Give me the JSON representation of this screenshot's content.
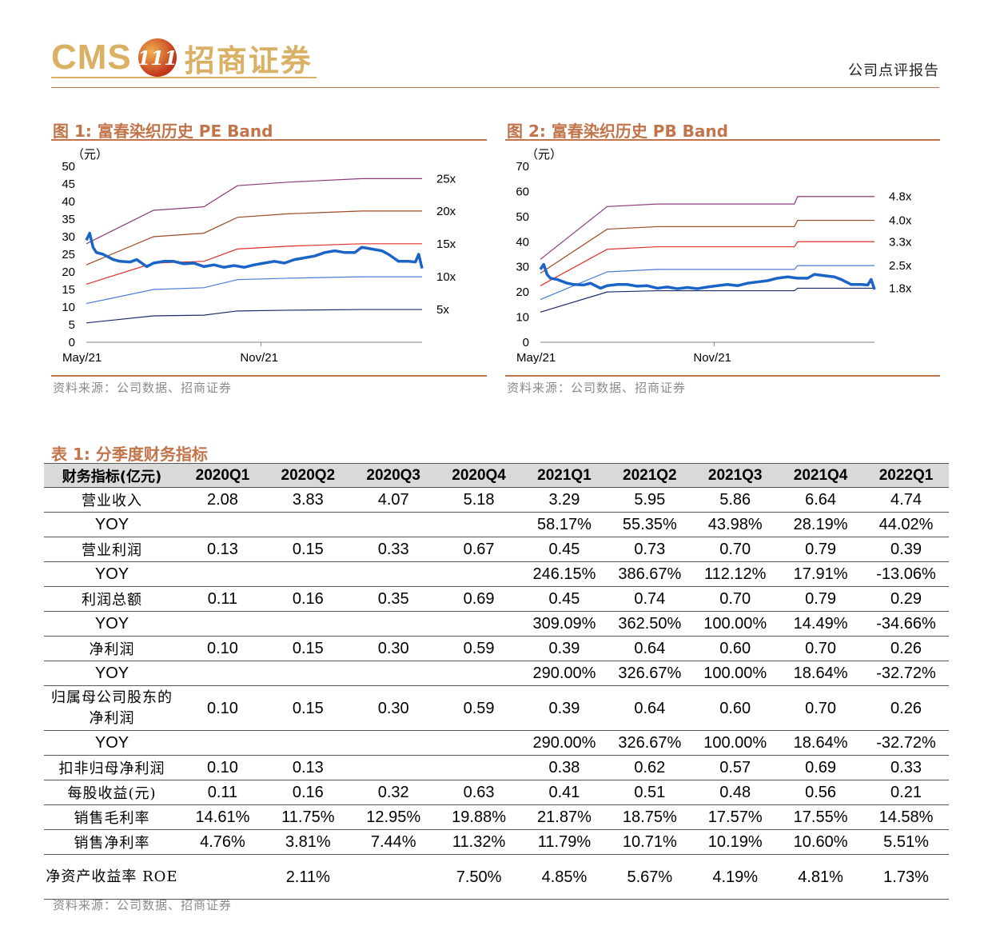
{
  "header": {
    "logo_en": "CMS",
    "logo_badge": "111",
    "logo_cn": "招商证券",
    "report_type": "公司点评报告"
  },
  "figures": [
    {
      "title": "图 1:  富春染织历史 PE Band",
      "source": "资料来源：公司数据、招商证券"
    },
    {
      "title": "图 2:  富春染织历史 PB Band",
      "source": "资料来源：公司数据、招商证券"
    }
  ],
  "chart_data": [
    {
      "type": "line",
      "title": "富春染织历史 PE Band",
      "unit_label": "（元）",
      "x_tick_labels": [
        "May/21",
        "Nov/21"
      ],
      "ylim": [
        0,
        50
      ],
      "y_ticks": [
        0,
        5,
        10,
        15,
        20,
        25,
        30,
        35,
        40,
        45,
        50
      ],
      "grid": false,
      "x": [
        0,
        0.2,
        0.35,
        0.45,
        0.6,
        0.82,
        1.0
      ],
      "series": [
        {
          "name": "25x",
          "color": "#8b3a7a",
          "values": [
            28,
            37.5,
            38.5,
            44.5,
            45.5,
            46.5,
            46.5
          ]
        },
        {
          "name": "20x",
          "color": "#9e4a24",
          "values": [
            22,
            30,
            31,
            35.5,
            36.5,
            37.3,
            37.3
          ]
        },
        {
          "name": "15x",
          "color": "#e0302a",
          "values": [
            16.5,
            22.5,
            23,
            26.5,
            27.3,
            28,
            28
          ]
        },
        {
          "name": "10x",
          "color": "#4a7ad6",
          "values": [
            11,
            15,
            15.5,
            17.8,
            18.2,
            18.6,
            18.6
          ]
        },
        {
          "name": "5x",
          "color": "#1e2a6e",
          "values": [
            5.5,
            7.5,
            7.7,
            8.9,
            9.1,
            9.3,
            9.3
          ]
        }
      ],
      "price": {
        "color": "#1a64c8",
        "x": [
          0,
          0.01,
          0.02,
          0.03,
          0.05,
          0.08,
          0.1,
          0.13,
          0.15,
          0.18,
          0.2,
          0.23,
          0.26,
          0.29,
          0.32,
          0.35,
          0.38,
          0.41,
          0.44,
          0.47,
          0.5,
          0.53,
          0.56,
          0.59,
          0.62,
          0.65,
          0.68,
          0.71,
          0.74,
          0.77,
          0.8,
          0.82,
          0.85,
          0.88,
          0.9,
          0.93,
          0.96,
          0.98,
          0.99,
          1.0
        ],
        "values": [
          29,
          31,
          27,
          25.5,
          25,
          23.5,
          23,
          22.8,
          23.5,
          21.5,
          22.5,
          23,
          23,
          22.3,
          22.5,
          21.5,
          22,
          21.3,
          21.8,
          21.3,
          22,
          22.5,
          23,
          22.5,
          23.5,
          24,
          24.5,
          25.5,
          26,
          25.5,
          25.5,
          27,
          26.5,
          26,
          25,
          23,
          23,
          22.8,
          25,
          21
        ]
      }
    },
    {
      "type": "line",
      "title": "富春染织历史 PB Band",
      "unit_label": "（元）",
      "x_tick_labels": [
        "May/21",
        "Nov/21"
      ],
      "ylim": [
        0,
        70
      ],
      "y_ticks": [
        0,
        10,
        20,
        30,
        40,
        50,
        60,
        70
      ],
      "grid": false,
      "x": [
        0,
        0.2,
        0.35,
        0.45,
        0.6,
        0.76,
        0.77,
        1.0
      ],
      "series": [
        {
          "name": "4.8x",
          "color": "#8b3a7a",
          "values": [
            33,
            54,
            55,
            55,
            55,
            55,
            58,
            58
          ]
        },
        {
          "name": "4.0x",
          "color": "#9e4a24",
          "values": [
            27.5,
            45,
            46,
            46,
            46,
            46,
            48.5,
            48.5
          ]
        },
        {
          "name": "3.3x",
          "color": "#e0302a",
          "values": [
            22.5,
            37,
            38,
            38,
            38,
            38,
            40,
            40
          ]
        },
        {
          "name": "2.5x",
          "color": "#4a7ad6",
          "values": [
            17,
            28,
            29,
            29,
            29,
            29,
            30.5,
            30.5
          ]
        },
        {
          "name": "1.8x",
          "color": "#1e2a6e",
          "values": [
            12,
            20,
            20.5,
            20.5,
            20.5,
            20.5,
            21.5,
            21.5
          ]
        }
      ],
      "price": {
        "color": "#1a64c8",
        "x": [
          0,
          0.01,
          0.02,
          0.03,
          0.05,
          0.08,
          0.1,
          0.13,
          0.15,
          0.18,
          0.2,
          0.23,
          0.26,
          0.29,
          0.32,
          0.35,
          0.38,
          0.41,
          0.44,
          0.47,
          0.5,
          0.53,
          0.56,
          0.59,
          0.62,
          0.65,
          0.68,
          0.71,
          0.74,
          0.77,
          0.8,
          0.82,
          0.85,
          0.88,
          0.9,
          0.93,
          0.96,
          0.98,
          0.99,
          1.0
        ],
        "values": [
          29,
          31,
          27,
          25.5,
          25,
          23.5,
          23,
          22.8,
          23.5,
          21.5,
          22.5,
          23,
          23,
          22.3,
          22.5,
          21.5,
          22,
          21.3,
          21.8,
          21.3,
          22,
          22.5,
          23,
          22.5,
          23.5,
          24,
          24.5,
          25.5,
          26,
          25.5,
          25.5,
          27,
          26.5,
          26,
          25,
          23,
          23,
          22.8,
          25,
          21
        ]
      }
    },
    {
      "type": "table",
      "title": "表 1:  分季度财务指标",
      "columns": [
        "财务指标(亿元)",
        "2020Q1",
        "2020Q2",
        "2020Q3",
        "2020Q4",
        "2021Q1",
        "2021Q2",
        "2021Q3",
        "2021Q4",
        "2022Q1"
      ],
      "rows": [
        {
          "label": "营业收入",
          "values": [
            "2.08",
            "3.83",
            "4.07",
            "5.18",
            "3.29",
            "5.95",
            "5.86",
            "6.64",
            "4.74"
          ]
        },
        {
          "label": "YOY",
          "yoy": true,
          "values": [
            "",
            "",
            "",
            "",
            "58.17%",
            "55.35%",
            "43.98%",
            "28.19%",
            "44.02%"
          ]
        },
        {
          "label": "营业利润",
          "values": [
            "0.13",
            "0.15",
            "0.33",
            "0.67",
            "0.45",
            "0.73",
            "0.70",
            "0.79",
            "0.39"
          ]
        },
        {
          "label": "YOY",
          "yoy": true,
          "values": [
            "",
            "",
            "",
            "",
            "246.15%",
            "386.67%",
            "112.12%",
            "17.91%",
            "-13.06%"
          ]
        },
        {
          "label": "利润总额",
          "values": [
            "0.11",
            "0.16",
            "0.35",
            "0.69",
            "0.45",
            "0.74",
            "0.70",
            "0.79",
            "0.29"
          ]
        },
        {
          "label": "YOY",
          "yoy": true,
          "values": [
            "",
            "",
            "",
            "",
            "309.09%",
            "362.50%",
            "100.00%",
            "14.49%",
            "-34.66%"
          ]
        },
        {
          "label": "净利润",
          "values": [
            "0.10",
            "0.15",
            "0.30",
            "0.59",
            "0.39",
            "0.64",
            "0.60",
            "0.70",
            "0.26"
          ]
        },
        {
          "label": "YOY",
          "yoy": true,
          "values": [
            "",
            "",
            "",
            "",
            "290.00%",
            "326.67%",
            "100.00%",
            "18.64%",
            "-32.72%"
          ]
        },
        {
          "label": "归属母公司股东的净利润",
          "tall": true,
          "values": [
            "0.10",
            "0.15",
            "0.30",
            "0.59",
            "0.39",
            "0.64",
            "0.60",
            "0.70",
            "0.26"
          ]
        },
        {
          "label": "YOY",
          "yoy": true,
          "values": [
            "",
            "",
            "",
            "",
            "290.00%",
            "326.67%",
            "100.00%",
            "18.64%",
            "-32.72%"
          ]
        },
        {
          "label": "扣非归母净利润",
          "values": [
            "0.10",
            "0.13",
            "",
            "",
            "0.38",
            "0.62",
            "0.57",
            "0.69",
            "0.33"
          ]
        },
        {
          "label": "每股收益(元)",
          "values": [
            "0.11",
            "0.16",
            "0.32",
            "0.63",
            "0.41",
            "0.51",
            "0.48",
            "0.56",
            "0.21"
          ]
        },
        {
          "label": "销售毛利率",
          "values": [
            "14.61%",
            "11.75%",
            "12.95%",
            "19.88%",
            "21.87%",
            "18.75%",
            "17.57%",
            "17.55%",
            "14.58%"
          ]
        },
        {
          "label": "销售净利率",
          "values": [
            "4.76%",
            "3.81%",
            "7.44%",
            "11.32%",
            "11.79%",
            "10.71%",
            "10.19%",
            "10.60%",
            "5.51%"
          ]
        },
        {
          "label": "净资产收益率 ROE",
          "tall": true,
          "values": [
            "",
            "2.11%",
            "",
            "7.50%",
            "4.85%",
            "5.67%",
            "4.19%",
            "4.81%",
            "1.73%"
          ]
        }
      ]
    }
  ],
  "table_source": "资料来源：公司数据、招商证券"
}
